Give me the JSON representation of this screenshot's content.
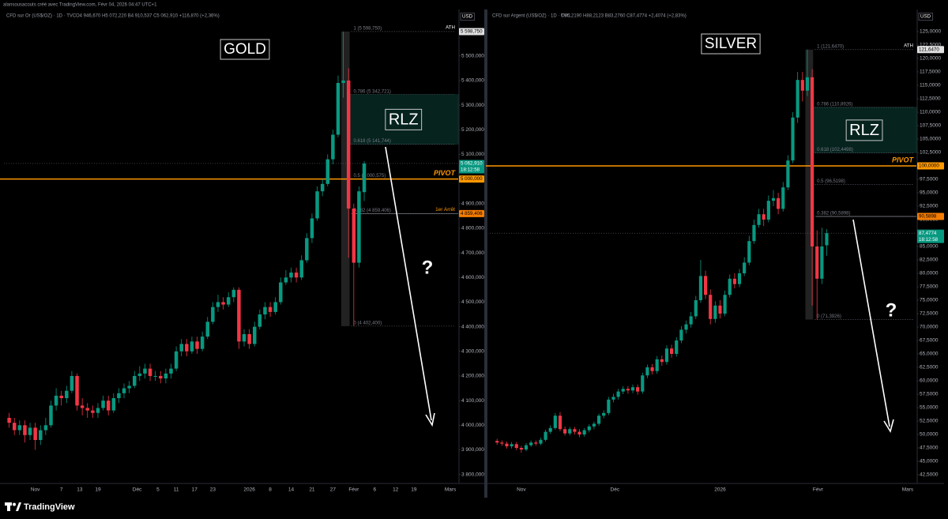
{
  "page_header": "alansousacouts créé avec TradingView.com, Févr 04, 2026 04:47 UTC+1",
  "footer_brand": "TradingView",
  "chart_data": [
    {
      "type": "candlestick",
      "title": "GOLD",
      "header": "CFD sur Or (US$/OZ) · 1D · TVC",
      "ohlc_header": "O4 946,670 H5 072,220 B4 910,537 C5 062,910 +116,870 (+2,36%)",
      "currency": "USD",
      "up_color": "#089981",
      "down_color": "#f23645",
      "open": [
        4030,
        4010,
        3980,
        4000,
        3960,
        3990,
        3940,
        3980,
        4000,
        4080,
        4120,
        4110,
        4140,
        4200,
        4080,
        4070,
        4060,
        4050,
        4070,
        4100,
        4060,
        4110,
        4130,
        4150,
        4160,
        4200,
        4210,
        4230,
        4200,
        4200,
        4190,
        4210,
        4230,
        4300,
        4330,
        4300,
        4340,
        4310,
        4360,
        4420,
        4480,
        4500,
        4490,
        4520,
        4550,
        4340,
        4370,
        4330,
        4400,
        4450,
        4480,
        4460,
        4500,
        4580,
        4600,
        4620,
        4600,
        4670,
        4760,
        4840,
        4950,
        4980,
        5080,
        5180,
        5390,
        5400,
        4880,
        4660,
        4946.67
      ],
      "high": [
        4050,
        4030,
        4020,
        4020,
        4010,
        4010,
        4000,
        4030,
        4100,
        4150,
        4140,
        4160,
        4220,
        4210,
        4110,
        4090,
        4080,
        4090,
        4120,
        4120,
        4130,
        4150,
        4170,
        4180,
        4220,
        4240,
        4250,
        4250,
        4220,
        4220,
        4230,
        4250,
        4320,
        4350,
        4350,
        4360,
        4360,
        4380,
        4440,
        4500,
        4530,
        4520,
        4540,
        4560,
        4560,
        4390,
        4390,
        4420,
        4470,
        4500,
        4500,
        4520,
        4600,
        4630,
        4640,
        4640,
        4690,
        4780,
        4860,
        4970,
        5000,
        5100,
        5200,
        5420,
        5598.75,
        5450,
        4900,
        4970,
        5072.22
      ],
      "low": [
        3990,
        3960,
        3960,
        3930,
        3940,
        3900,
        3920,
        3960,
        3990,
        4060,
        4080,
        4090,
        4130,
        4060,
        4040,
        4030,
        4030,
        4030,
        4060,
        4040,
        4050,
        4090,
        4110,
        4130,
        4150,
        4180,
        4190,
        4180,
        4180,
        4170,
        4170,
        4190,
        4220,
        4280,
        4280,
        4290,
        4290,
        4300,
        4350,
        4410,
        4460,
        4470,
        4480,
        4500,
        4310,
        4320,
        4310,
        4320,
        4390,
        4430,
        4440,
        4450,
        4490,
        4570,
        4580,
        4580,
        4590,
        4660,
        4740,
        4830,
        4930,
        4970,
        5060,
        5170,
        5330,
        4680,
        4402.4,
        4640,
        4910.537
      ],
      "close": [
        4010,
        3980,
        4000,
        3960,
        3990,
        3940,
        3980,
        4000,
        4080,
        4120,
        4110,
        4140,
        4200,
        4080,
        4070,
        4060,
        4050,
        4070,
        4100,
        4060,
        4110,
        4130,
        4150,
        4160,
        4200,
        4210,
        4230,
        4200,
        4200,
        4190,
        4210,
        4230,
        4300,
        4330,
        4300,
        4340,
        4310,
        4360,
        4420,
        4480,
        4500,
        4490,
        4520,
        4550,
        4340,
        4370,
        4330,
        4400,
        4450,
        4480,
        4460,
        4500,
        4580,
        4600,
        4620,
        4600,
        4670,
        4760,
        4840,
        4950,
        4980,
        5080,
        5180,
        5390,
        5400,
        4880,
        4660,
        4950,
        5062.91
      ],
      "ylim": [
        3770,
        5682
      ],
      "yticks": [
        {
          "value": 3800,
          "label": "3 800,000"
        },
        {
          "value": 3900,
          "label": "3 900,000"
        },
        {
          "value": 4000,
          "label": "4 000,000"
        },
        {
          "value": 4100,
          "label": "4 100,000"
        },
        {
          "value": 4200,
          "label": "4 200,000"
        },
        {
          "value": 4300,
          "label": "4 300,000"
        },
        {
          "value": 4400,
          "label": "4 400,000"
        },
        {
          "value": 4500,
          "label": "4 500,000"
        },
        {
          "value": 4600,
          "label": "4 600,000"
        },
        {
          "value": 4700,
          "label": "4 700,000"
        },
        {
          "value": 4800,
          "label": "4 800,000"
        },
        {
          "value": 4900,
          "label": "4 900,000"
        },
        {
          "value": 5000,
          "label": "5 000,000"
        },
        {
          "value": 5100,
          "label": "5 100,000"
        },
        {
          "value": 5200,
          "label": "5 200,000"
        },
        {
          "value": 5300,
          "label": "5 300,000"
        },
        {
          "value": 5400,
          "label": "5 400,000"
        },
        {
          "value": 5500,
          "label": "5 500,000"
        }
      ],
      "xlim": [
        -1,
        86
      ],
      "xticks": [
        {
          "value": 5,
          "label": "Nov"
        },
        {
          "value": 10,
          "label": "7"
        },
        {
          "value": 13.5,
          "label": "13"
        },
        {
          "value": 17,
          "label": "19"
        },
        {
          "value": 24.5,
          "label": "Déc"
        },
        {
          "value": 28.5,
          "label": "5"
        },
        {
          "value": 32,
          "label": "11"
        },
        {
          "value": 35.5,
          "label": "17"
        },
        {
          "value": 39,
          "label": "23"
        },
        {
          "value": 46,
          "label": "2026"
        },
        {
          "value": 50,
          "label": "8"
        },
        {
          "value": 54,
          "label": "14"
        },
        {
          "value": 58,
          "label": "21"
        },
        {
          "value": 62,
          "label": "27"
        },
        {
          "value": 66,
          "label": "Févr"
        },
        {
          "value": 70,
          "label": "6"
        },
        {
          "value": 74,
          "label": "12"
        },
        {
          "value": 77.5,
          "label": "19"
        },
        {
          "value": 84.5,
          "label": "Mars"
        }
      ],
      "fib_levels": [
        {
          "value": 5598.75,
          "label": "1 (5 598,750)"
        },
        {
          "value": 5342.721,
          "label": "0.786 (5 342,721)"
        },
        {
          "value": 5141.744,
          "label": "0.618 (5 141,744)"
        },
        {
          "value": 5000.575,
          "label": "0.5 (5 000,575)"
        },
        {
          "value": 4859.406,
          "label": "0.382 (4 859,406)"
        },
        {
          "value": 4402.4,
          "label": "0 (4 402,400)"
        }
      ],
      "zone_label": "RLZ",
      "pivot": {
        "value": 5000,
        "label": "PIVOT",
        "price_label": "5 000,000"
      },
      "stop": {
        "value": 4859.406,
        "label": "1er Arrêt",
        "price_label": "4 859,406"
      },
      "ath": {
        "value": 5598.75,
        "label": "ATH",
        "price_label": "5 598,750"
      },
      "last_price_label": "5 062,910",
      "countdown": "18:12:58",
      "question": "?"
    },
    {
      "type": "candlestick",
      "title": "SILVER",
      "header": "CFD sur Argent (US$/OZ) · 1D · TVC",
      "ohlc_header": "O85,2190 H88,2123 B83,2760 C87,4774 +2,4074 (+2,83%)",
      "currency": "USD",
      "up_color": "#089981",
      "down_color": "#f23645",
      "open": [
        48.8,
        48.5,
        48.3,
        47.8,
        48.2,
        47.5,
        47.2,
        48.0,
        48.5,
        48.3,
        49.0,
        50.5,
        51.2,
        53.5,
        51.0,
        50.2,
        51.0,
        50.5,
        50.0,
        50.8,
        51.5,
        52.0,
        53.5,
        54.0,
        56.5,
        57.0,
        58.0,
        58.5,
        58.2,
        58.8,
        58.0,
        61.0,
        62.5,
        61.8,
        64.0,
        63.5,
        66.0,
        65.0,
        67.5,
        69.5,
        70.5,
        72.0,
        75.0,
        79.5,
        76.0,
        71.5,
        74.0,
        72.5,
        76.0,
        79.0,
        78.0,
        80.0,
        82.0,
        86.0,
        89.0,
        91.0,
        90.0,
        93.5,
        94.0,
        92.0,
        96.0,
        101.0,
        109.0,
        116.0,
        114.0,
        116.5,
        85.0,
        79.0,
        85.219
      ],
      "high": [
        49.2,
        48.9,
        48.7,
        48.6,
        48.6,
        47.9,
        48.4,
        48.9,
        48.9,
        49.4,
        50.9,
        51.7,
        54.0,
        54.2,
        51.5,
        51.4,
        51.4,
        51.0,
        51.2,
        51.9,
        52.4,
        53.9,
        54.5,
        57.0,
        57.6,
        58.5,
        59.0,
        59.0,
        59.3,
        59.3,
        61.5,
        63.0,
        63.1,
        64.6,
        64.7,
        66.6,
        66.7,
        68.1,
        70.2,
        71.2,
        72.8,
        75.8,
        82.5,
        80.5,
        77.0,
        74.8,
        75.0,
        76.8,
        79.8,
        80.0,
        80.8,
        83.0,
        87.0,
        90.0,
        92.0,
        92.0,
        94.5,
        95.5,
        95.0,
        97.0,
        102.0,
        110.0,
        117.5,
        117.5,
        121.647,
        118.0,
        88.0,
        88.5,
        88.2123
      ],
      "low": [
        48.1,
        47.9,
        47.4,
        47.4,
        47.1,
        46.6,
        46.9,
        47.7,
        47.9,
        48.0,
        48.7,
        50.1,
        50.9,
        50.6,
        49.8,
        49.8,
        50.0,
        49.5,
        49.6,
        50.4,
        51.0,
        51.6,
        53.0,
        53.6,
        56.0,
        56.5,
        57.5,
        57.6,
        57.7,
        57.4,
        57.6,
        60.5,
        61.2,
        61.3,
        62.8,
        63.0,
        64.3,
        64.5,
        67.0,
        68.8,
        69.9,
        71.5,
        74.5,
        75.2,
        70.5,
        70.8,
        71.6,
        72.0,
        75.5,
        77.2,
        77.4,
        79.5,
        81.5,
        85.5,
        88.5,
        88.8,
        89.5,
        92.5,
        91.0,
        91.5,
        95.5,
        100.5,
        108.0,
        112.0,
        113.0,
        74.0,
        71.3926,
        78.0,
        83.276
      ],
      "close": [
        48.5,
        48.3,
        47.8,
        48.2,
        47.5,
        47.2,
        48.0,
        48.5,
        48.3,
        49.0,
        50.5,
        51.2,
        53.5,
        51.0,
        50.2,
        51.0,
        50.5,
        50.0,
        50.8,
        51.5,
        52.0,
        53.5,
        54.0,
        56.5,
        57.0,
        58.0,
        58.5,
        58.2,
        58.8,
        58.0,
        61.0,
        62.5,
        61.8,
        64.0,
        63.5,
        66.0,
        65.0,
        67.5,
        69.5,
        70.5,
        72.0,
        75.0,
        79.5,
        76.0,
        71.5,
        74.0,
        72.5,
        76.0,
        79.0,
        78.0,
        80.0,
        82.0,
        86.0,
        89.0,
        91.0,
        90.0,
        93.5,
        94.0,
        92.0,
        96.0,
        101.0,
        109.0,
        116.0,
        114.0,
        116.5,
        85.0,
        79.0,
        85.0,
        87.4774
      ],
      "ylim": [
        41.18,
        128.82
      ],
      "yticks": [
        {
          "value": 42.5,
          "label": "42,5000"
        },
        {
          "value": 45,
          "label": "45,0000"
        },
        {
          "value": 47.5,
          "label": "47,5000"
        },
        {
          "value": 50,
          "label": "50,0000"
        },
        {
          "value": 52.5,
          "label": "52,5000"
        },
        {
          "value": 55,
          "label": "55,0000"
        },
        {
          "value": 57.5,
          "label": "57,5000"
        },
        {
          "value": 60,
          "label": "60,0000"
        },
        {
          "value": 62.5,
          "label": "62,5000"
        },
        {
          "value": 65,
          "label": "65,0000"
        },
        {
          "value": 67.5,
          "label": "67,5000"
        },
        {
          "value": 70,
          "label": "70,0000"
        },
        {
          "value": 72.5,
          "label": "72,5000"
        },
        {
          "value": 75,
          "label": "75,0000"
        },
        {
          "value": 77.5,
          "label": "77,5000"
        },
        {
          "value": 80,
          "label": "80,0000"
        },
        {
          "value": 82.5,
          "label": "82,5000"
        },
        {
          "value": 85,
          "label": "85,0000"
        },
        {
          "value": 87.5,
          "label": "87,5000"
        },
        {
          "value": 90,
          "label": "90,0000"
        },
        {
          "value": 92.5,
          "label": "92,5000"
        },
        {
          "value": 95,
          "label": "95,0000"
        },
        {
          "value": 97.5,
          "label": "97,5000"
        },
        {
          "value": 100,
          "label": "100,0000"
        },
        {
          "value": 102.5,
          "label": "102,5000"
        },
        {
          "value": 105,
          "label": "105,0000"
        },
        {
          "value": 107.5,
          "label": "107,5000"
        },
        {
          "value": 110,
          "label": "110,0000"
        },
        {
          "value": 112.5,
          "label": "112,5000"
        },
        {
          "value": 115,
          "label": "115,0000"
        },
        {
          "value": 117.5,
          "label": "117,5000"
        },
        {
          "value": 120,
          "label": "120,0000"
        },
        {
          "value": 122.5,
          "label": "122,5000"
        },
        {
          "value": 125,
          "label": "125,0000"
        }
      ],
      "xlim": [
        -1.5,
        86.5
      ],
      "xticks": [
        {
          "value": 5,
          "label": "Nov"
        },
        {
          "value": 24.3,
          "label": "Déc"
        },
        {
          "value": 46,
          "label": "2026"
        },
        {
          "value": 66.2,
          "label": "Févr"
        },
        {
          "value": 84.7,
          "label": "Mars"
        }
      ],
      "fib_levels": [
        {
          "value": 121.647,
          "label": "1 (121,6470)"
        },
        {
          "value": 110.8926,
          "label": "0.786 (110,8926)"
        },
        {
          "value": 102.4498,
          "label": "0.618 (102,4498)"
        },
        {
          "value": 96.5198,
          "label": "0.5 (96,5198)"
        },
        {
          "value": 90.5898,
          "label": "0.382 (90,5898)"
        },
        {
          "value": 71.3926,
          "label": "0 (71,3926)"
        }
      ],
      "zone_label": "RLZ",
      "pivot": {
        "value": 100,
        "label": "PIVOT",
        "price_label": "100,0000"
      },
      "stop": {
        "value": 90.5898,
        "price_label": "90,5898"
      },
      "ath": {
        "value": 121.647,
        "label": "ATH",
        "price_label": "121,6470"
      },
      "last_price_label": "87,4774",
      "countdown": "18:12:58",
      "question": "?"
    }
  ]
}
